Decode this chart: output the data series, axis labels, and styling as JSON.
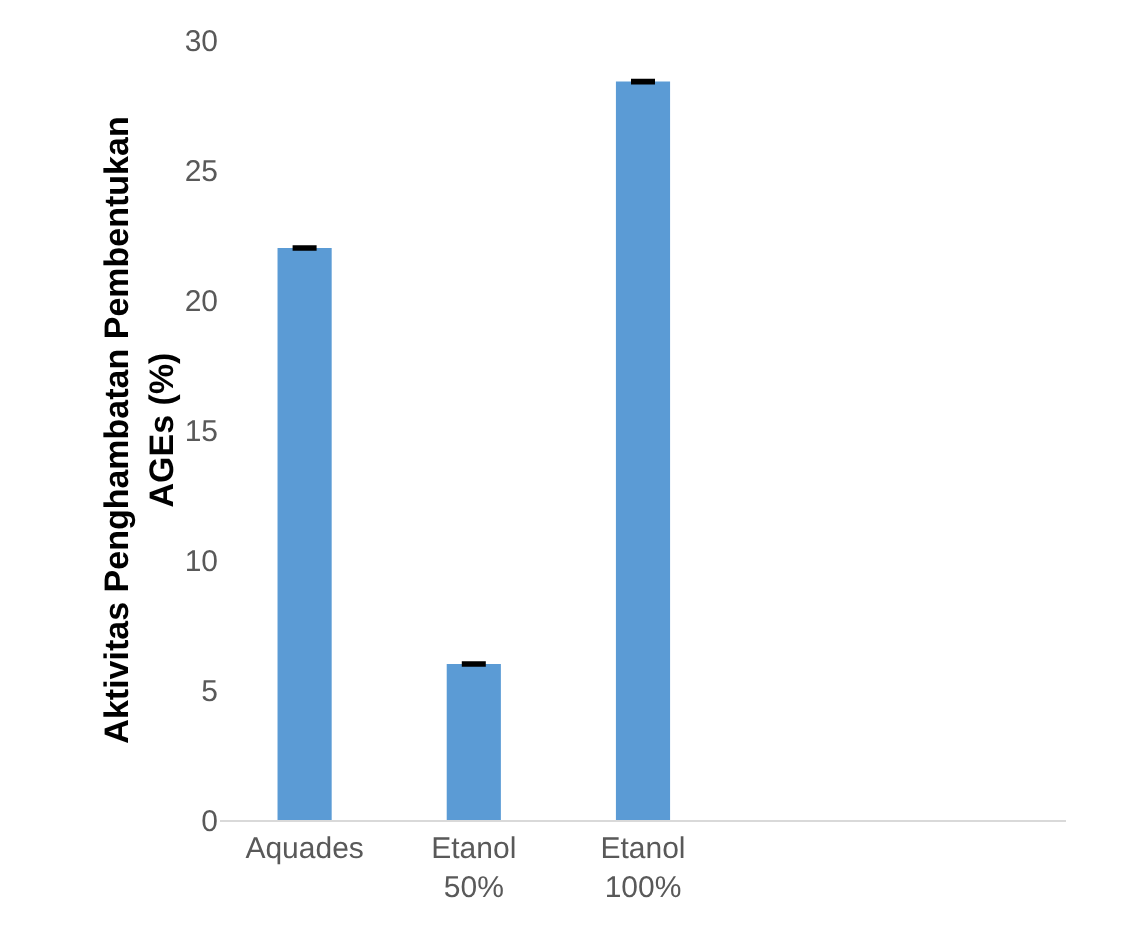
{
  "chart_data": {
    "type": "bar",
    "ylabel": "Aktivitas Penghambatan Pembentukan AGEs (%)",
    "categories": [
      "Aquades",
      "Etanol 50%",
      "Etanol 100%",
      null,
      null
    ],
    "values": [
      22.0,
      6.0,
      28.4,
      null,
      null
    ],
    "errors": [
      0.05,
      0.05,
      0.05,
      null,
      null
    ],
    "color": "#5b9bd5",
    "ylim": [
      0,
      30
    ],
    "yticks": [
      0,
      5,
      10,
      15,
      20,
      25,
      30
    ],
    "grid": false
  }
}
